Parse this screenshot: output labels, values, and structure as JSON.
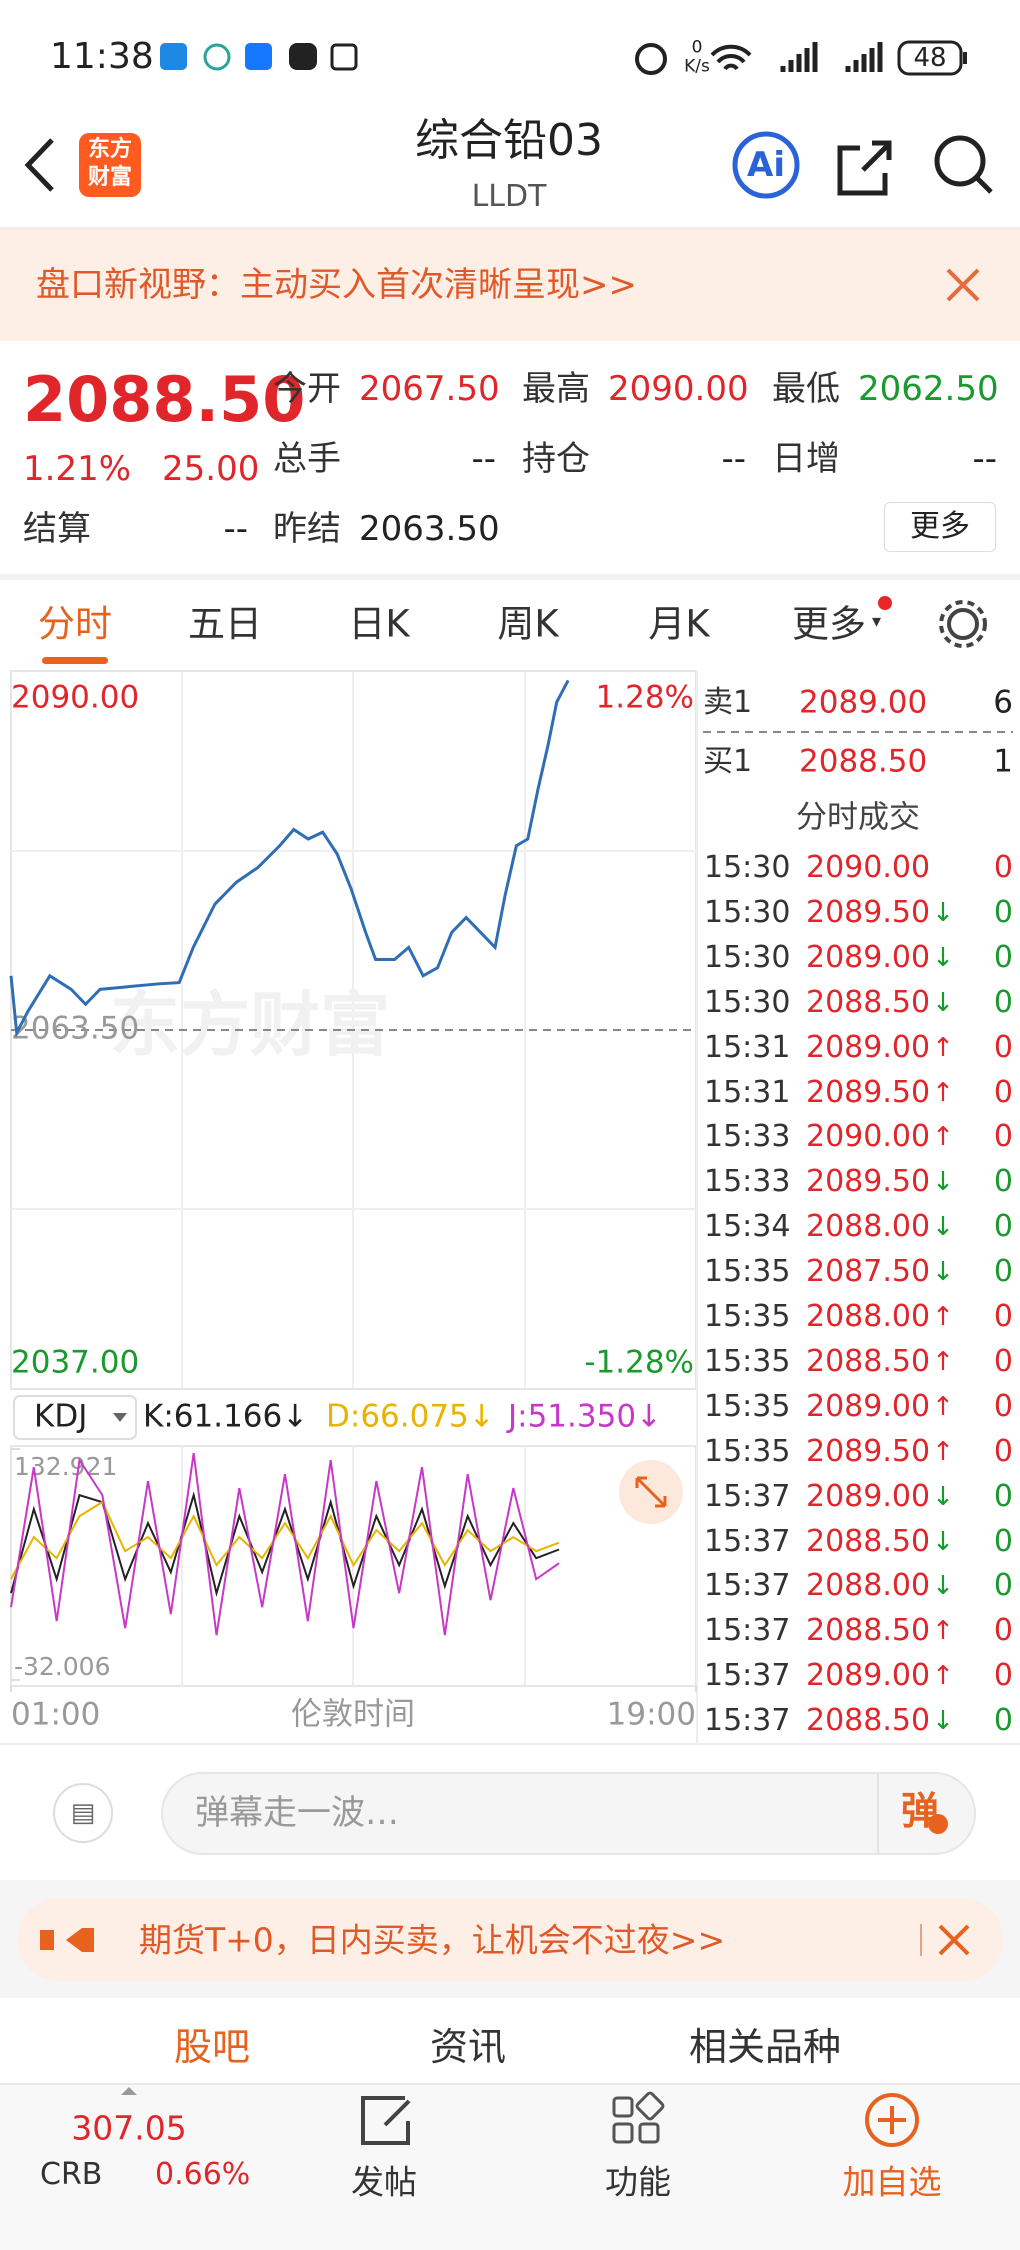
{
  "status_bar": {
    "time": "11:38",
    "net_speed": "0",
    "net_unit": "K/s",
    "battery": "48"
  },
  "header": {
    "logo_lines": [
      "东方",
      "财富"
    ],
    "title": "综合铅03",
    "code": "LLDT",
    "ai_button": "Ai"
  },
  "banner": {
    "text": "盘口新视野：主动买入首次清晰呈现>>"
  },
  "quote": {
    "price": "2088.50",
    "change_pct": "1.21%",
    "change": "25.00",
    "more": "更多",
    "fields": [
      {
        "label": "今开",
        "value": "2067.50",
        "color": "#e0262a"
      },
      {
        "label": "最高",
        "value": "2090.00",
        "color": "#e0262a"
      },
      {
        "label": "最低",
        "value": "2062.50",
        "color": "#1a9a2e"
      },
      {
        "label": "总手",
        "value": "--"
      },
      {
        "label": "持仓",
        "value": "--"
      },
      {
        "label": "日增",
        "value": "--"
      },
      {
        "label": "结算",
        "value": "--"
      },
      {
        "label": "昨结",
        "value": "2063.50"
      }
    ]
  },
  "tabs": {
    "items": [
      "分时",
      "五日",
      "日K",
      "周K",
      "月K",
      "更多"
    ],
    "active": 0
  },
  "chart_data": [
    {
      "type": "line",
      "watermark": "东方财富",
      "color": "#2f6db5",
      "x": [
        1.0,
        1.15,
        1.45,
        2.02,
        2.58,
        2.96,
        3.34,
        4.09,
        4.85,
        5.42,
        5.79,
        6.36,
        6.92,
        7.49,
        8.06,
        8.43,
        8.81,
        9.19,
        9.57,
        9.94,
        10.32,
        10.58,
        11.08,
        11.45,
        11.83,
        12.21,
        12.58,
        12.96,
        13.34,
        13.72,
        13.98,
        14.28,
        14.58,
        14.85,
        15.11,
        15.34,
        15.64
      ],
      "values": [
        2067.5,
        2063.3,
        2064.9,
        2067.5,
        2066.5,
        2065.4,
        2066.5,
        2066.7,
        2066.9,
        2067.0,
        2069.6,
        2072.8,
        2074.4,
        2075.5,
        2077.1,
        2078.3,
        2077.6,
        2078.1,
        2076.5,
        2073.9,
        2070.7,
        2068.7,
        2068.7,
        2069.6,
        2067.5,
        2068.1,
        2070.7,
        2071.8,
        2070.7,
        2069.6,
        2073.4,
        2077.1,
        2077.6,
        2081.3,
        2084.5,
        2087.7,
        2089.3
      ],
      "xlim": [
        1,
        19
      ],
      "xticks": [
        {
          "value": 1,
          "label": "01:00"
        },
        {
          "value": 19,
          "label": "19:00"
        }
      ],
      "xlabel": "伦敦时间",
      "ylim": [
        2037,
        2090
      ],
      "yticks": [
        {
          "value": 2090,
          "label": "2090.00"
        },
        {
          "value": 2037,
          "label": "2037.00"
        }
      ],
      "reference": {
        "value": 2063.5,
        "label": "2063.50"
      },
      "y2lim": [
        -1.28,
        1.28
      ],
      "y2ticks": [
        {
          "value": 1.28,
          "label": "1.28%"
        },
        {
          "value": -1.28,
          "label": "-1.28%"
        }
      ]
    },
    {
      "type": "line",
      "indicator": "KDJ",
      "x": [
        1,
        1.6,
        2.2,
        2.8,
        3.4,
        4,
        4.6,
        5.2,
        5.8,
        6.4,
        7,
        7.6,
        8.2,
        8.8,
        9.4,
        10,
        10.6,
        11.2,
        11.8,
        12.4,
        13,
        13.6,
        14.2,
        14.8,
        15.4
      ],
      "xlim": [
        1,
        19
      ],
      "ylim": [
        -32.006,
        132.921
      ],
      "yticks": [
        132.921,
        -32.006
      ],
      "series": [
        {
          "name": "K:61.166↓",
          "color": "#222222",
          "values": [
            30,
            90,
            40,
            100,
            95,
            40,
            80,
            45,
            100,
            30,
            85,
            45,
            90,
            40,
            95,
            35,
            85,
            50,
            90,
            35,
            85,
            50,
            80,
            55,
            61.166
          ]
        },
        {
          "name": "D:66.075↓",
          "color": "#e8b400",
          "values": [
            40,
            70,
            55,
            85,
            95,
            60,
            70,
            55,
            85,
            50,
            70,
            55,
            80,
            55,
            85,
            50,
            75,
            60,
            80,
            50,
            75,
            60,
            70,
            60,
            66.075
          ]
        },
        {
          "name": "J:51.350↓",
          "color": "#c837c8",
          "values": [
            20,
            120,
            10,
            125,
            100,
            5,
            110,
            15,
            130,
            0,
            105,
            20,
            115,
            10,
            125,
            5,
            110,
            30,
            120,
            0,
            115,
            25,
            105,
            40,
            51.35
          ]
        }
      ]
    }
  ],
  "order_book": [
    {
      "side": "卖1",
      "price": "2089.00",
      "qty": "6"
    },
    {
      "side": "买1",
      "price": "2088.50",
      "qty": "1"
    }
  ],
  "trades": {
    "title": "分时成交",
    "rows": [
      {
        "time": "15:30",
        "price": "2090.00",
        "qty": "0"
      },
      {
        "time": "15:30",
        "price": "2089.50",
        "dir": "↓",
        "qty": "0"
      },
      {
        "time": "15:30",
        "price": "2089.00",
        "dir": "↓",
        "qty": "0"
      },
      {
        "time": "15:30",
        "price": "2088.50",
        "dir": "↓",
        "qty": "0"
      },
      {
        "time": "15:31",
        "price": "2089.00",
        "dir": "↑",
        "qty": "0"
      },
      {
        "time": "15:31",
        "price": "2089.50",
        "dir": "↑",
        "qty": "0"
      },
      {
        "time": "15:33",
        "price": "2090.00",
        "dir": "↑",
        "qty": "0"
      },
      {
        "time": "15:33",
        "price": "2089.50",
        "dir": "↓",
        "qty": "0"
      },
      {
        "time": "15:34",
        "price": "2088.00",
        "dir": "↓",
        "qty": "0"
      },
      {
        "time": "15:35",
        "price": "2087.50",
        "dir": "↓",
        "qty": "0"
      },
      {
        "time": "15:35",
        "price": "2088.00",
        "dir": "↑",
        "qty": "0"
      },
      {
        "time": "15:35",
        "price": "2088.50",
        "dir": "↑",
        "qty": "0"
      },
      {
        "time": "15:35",
        "price": "2089.00",
        "dir": "↑",
        "qty": "0"
      },
      {
        "time": "15:35",
        "price": "2089.50",
        "dir": "↑",
        "qty": "0"
      },
      {
        "time": "15:37",
        "price": "2089.00",
        "dir": "↓",
        "qty": "0"
      },
      {
        "time": "15:37",
        "price": "2088.50",
        "dir": "↓",
        "qty": "0"
      },
      {
        "time": "15:37",
        "price": "2088.00",
        "dir": "↓",
        "qty": "0"
      },
      {
        "time": "15:37",
        "price": "2088.50",
        "dir": "↑",
        "qty": "0"
      },
      {
        "time": "15:37",
        "price": "2089.00",
        "dir": "↑",
        "qty": "0"
      },
      {
        "time": "15:37",
        "price": "2088.50",
        "dir": "↓",
        "qty": "0"
      }
    ]
  },
  "comment": {
    "placeholder": "弹幕走一波…",
    "button": "弹"
  },
  "ad": {
    "text": "期货T+0，日内买卖，让机会不过夜>>"
  },
  "bottom_tabs": {
    "items": [
      "股吧",
      "资讯",
      "相关品种"
    ],
    "active": 0
  },
  "index_ticker": {
    "value": "307.05",
    "name": "CRB",
    "change": "0.66%"
  },
  "nav": [
    "发帖",
    "功能",
    "加自选"
  ]
}
